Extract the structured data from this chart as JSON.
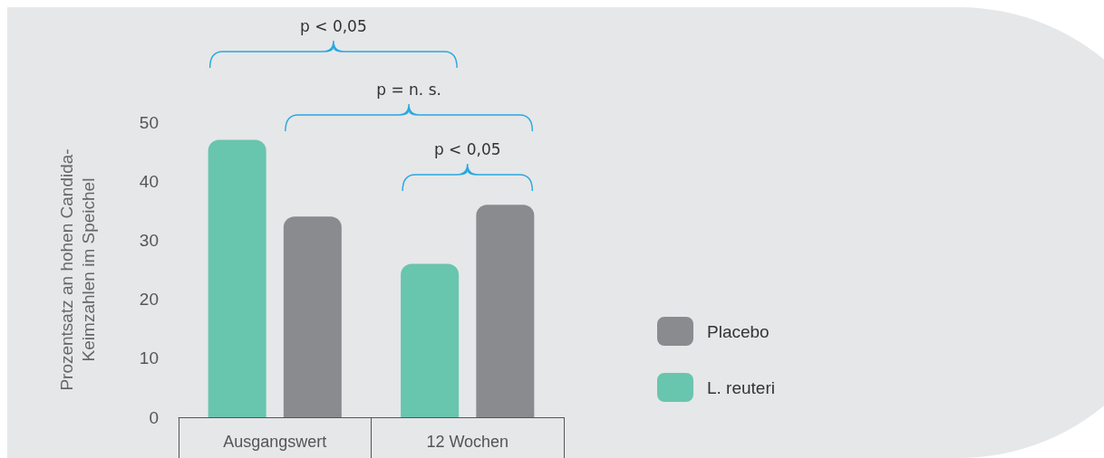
{
  "chart_data": {
    "type": "bar",
    "ylabel": "Prozentsatz an hohen Candida-Keimzahlen im Speichel",
    "categories": [
      "Ausgangswert",
      "12 Wochen"
    ],
    "series": [
      {
        "name": "L. reuteri",
        "color": "#68c5ae",
        "values": [
          47,
          26
        ]
      },
      {
        "name": "Placebo",
        "color": "#8a8b8e",
        "values": [
          34,
          36
        ]
      }
    ],
    "ylim": [
      0,
      50
    ],
    "yticks": [
      0,
      10,
      20,
      30,
      40,
      50
    ],
    "grid": false,
    "legend": "bottom right",
    "annotations": [
      "p < 0,05",
      "p = n. s.",
      "p < 0,05"
    ]
  }
}
